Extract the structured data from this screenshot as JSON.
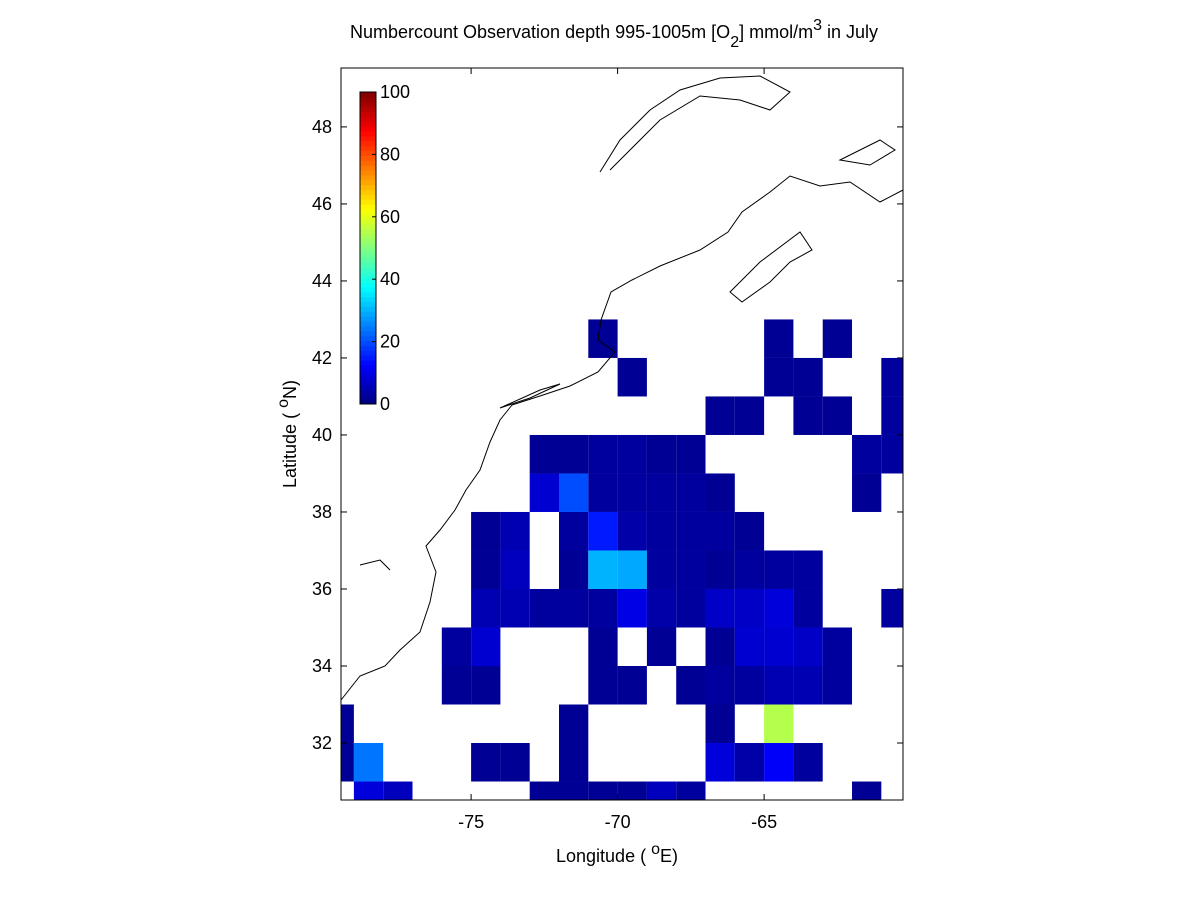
{
  "chart_data": {
    "type": "heatmap",
    "title": [
      "Numbercount Observation depth 995-1005m [O",
      "2",
      "] mmol/m",
      "3",
      " in July"
    ],
    "xlabel": [
      "Longitude ( ",
      "o",
      "E)"
    ],
    "ylabel": [
      "Latitude ( ",
      "o",
      "N)"
    ],
    "x": [
      -80,
      -79,
      -78,
      -77,
      -76,
      -75,
      -74,
      -73,
      -72,
      -71,
      -70,
      -69,
      -68,
      -67,
      -66,
      -65,
      -64,
      -63,
      -62,
      -61
    ],
    "y": [
      30,
      31,
      32,
      33,
      34,
      35,
      36,
      37,
      38,
      39,
      40,
      41,
      42
    ],
    "values": [
      [
        null,
        9,
        6,
        null,
        null,
        null,
        null,
        2,
        2,
        2,
        2,
        6,
        3,
        null,
        null,
        null,
        null,
        null,
        2,
        null
      ],
      [
        2,
        24,
        null,
        null,
        null,
        2,
        2,
        null,
        2,
        null,
        null,
        null,
        null,
        9,
        4,
        12,
        3,
        null,
        null,
        null
      ],
      [
        2,
        null,
        null,
        null,
        null,
        null,
        null,
        null,
        2,
        null,
        null,
        null,
        null,
        2,
        null,
        55,
        null,
        null,
        null,
        null
      ],
      [
        null,
        null,
        null,
        null,
        2,
        2,
        null,
        null,
        null,
        2,
        2,
        null,
        2,
        3,
        3,
        5,
        5,
        3,
        null,
        null
      ],
      [
        null,
        null,
        null,
        null,
        3,
        8,
        null,
        null,
        null,
        2,
        null,
        2,
        null,
        2,
        8,
        8,
        7,
        3,
        null,
        null
      ],
      [
        null,
        null,
        null,
        null,
        null,
        5,
        5,
        3,
        3,
        3,
        10,
        4,
        3,
        7,
        7,
        9,
        3,
        null,
        null,
        3
      ],
      [
        null,
        null,
        null,
        null,
        null,
        2,
        6,
        null,
        2,
        30,
        29,
        3,
        3,
        2,
        3,
        3,
        3,
        null,
        null,
        null
      ],
      [
        null,
        null,
        null,
        null,
        null,
        2,
        5,
        null,
        3,
        15,
        4,
        3,
        3,
        3,
        2,
        null,
        null,
        null,
        null,
        null
      ],
      [
        null,
        null,
        null,
        null,
        null,
        null,
        null,
        8,
        20,
        3,
        3,
        3,
        3,
        2,
        null,
        null,
        null,
        null,
        2,
        null
      ],
      [
        null,
        null,
        null,
        null,
        null,
        null,
        null,
        2,
        2,
        3,
        3,
        2,
        2,
        null,
        null,
        null,
        null,
        null,
        3,
        3
      ],
      [
        null,
        null,
        null,
        null,
        null,
        null,
        null,
        null,
        null,
        null,
        null,
        null,
        null,
        2,
        2,
        null,
        2,
        2,
        null,
        3
      ],
      [
        null,
        null,
        null,
        null,
        null,
        null,
        null,
        null,
        null,
        null,
        2,
        null,
        null,
        null,
        null,
        2,
        2,
        null,
        null,
        3
      ],
      [
        null,
        null,
        null,
        null,
        null,
        null,
        null,
        null,
        null,
        2,
        null,
        null,
        null,
        null,
        null,
        2,
        null,
        2,
        null,
        null
      ]
    ],
    "xlim": [
      -79.44,
      -60.26
    ],
    "ylim": [
      30.52,
      49.53
    ],
    "xticks": [
      -75,
      -70,
      -65
    ],
    "yticks": [
      32,
      34,
      36,
      38,
      40,
      42,
      44,
      46,
      48
    ],
    "colormap": "jet",
    "clim": [
      0,
      100
    ],
    "cticks": [
      0,
      20,
      40,
      60,
      80,
      100
    ]
  }
}
